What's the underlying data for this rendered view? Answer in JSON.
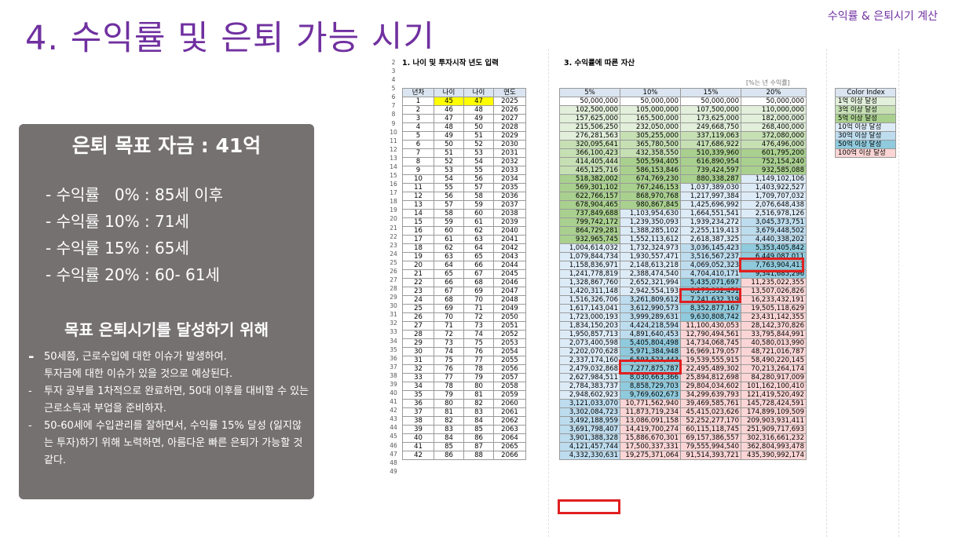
{
  "header": {
    "top_right": "수익률 & 은퇴시기 계산",
    "title": "4. 수익률 및 은퇴 가능 시기"
  },
  "panel": {
    "title": "은퇴 목표 자금 : 41억",
    "rates": [
      "- 수익률   0% : 85세 이후",
      "- 수익률 10% : 71세",
      "- 수익률 15% : 65세",
      "- 수익률 20% : 60- 61세"
    ],
    "subtitle": "목표 은퇴시기를 달성하기 위해",
    "notes": [
      "50세쯤, 근로수입에 대한 이슈가 발생하여.\n투자금에 대한 이슈가 있을 것으로 예상된다.",
      "투자 공부를 1차적으로 완료하면, 50대 이후를 대비할 수 있는 근로소득과 부업을 준비하자.",
      "50-60세에 수입관리를 잘하면서, 수익률 15% 달성 (잃지않는 투자)하기 위해 노력하면, 아름다운 빠른 은퇴가 가능할 것 같다."
    ]
  },
  "sheet": {
    "section1_title": "1. 나이 및 투자시작 년도 입력",
    "section3_title": "3. 수익률에 따른 자산",
    "unit_note": "[%는 년 수익률]",
    "row_numbers": [
      "2",
      "3",
      "4",
      "5",
      "6",
      "7",
      "8",
      "9",
      "10",
      "11",
      "12",
      "13",
      "14",
      "15",
      "16",
      "17",
      "18",
      "19",
      "20",
      "21",
      "22",
      "23",
      "24",
      "25",
      "26",
      "27",
      "28",
      "29",
      "30",
      "31",
      "32",
      "33",
      "34",
      "35",
      "36",
      "37",
      "38",
      "39",
      "40",
      "41",
      "42",
      "43",
      "44",
      "45",
      "46",
      "47",
      "48",
      "49"
    ],
    "left_headers": [
      "년차",
      "나이",
      "나이",
      "연도"
    ],
    "left_rows": [
      [
        "1",
        "45",
        "47",
        "2025"
      ],
      [
        "2",
        "46",
        "48",
        "2026"
      ],
      [
        "3",
        "47",
        "49",
        "2027"
      ],
      [
        "4",
        "48",
        "50",
        "2028"
      ],
      [
        "5",
        "49",
        "51",
        "2029"
      ],
      [
        "6",
        "50",
        "52",
        "2030"
      ],
      [
        "7",
        "51",
        "53",
        "2031"
      ],
      [
        "8",
        "52",
        "54",
        "2032"
      ],
      [
        "9",
        "53",
        "55",
        "2033"
      ],
      [
        "10",
        "54",
        "56",
        "2034"
      ],
      [
        "11",
        "55",
        "57",
        "2035"
      ],
      [
        "12",
        "56",
        "58",
        "2036"
      ],
      [
        "13",
        "57",
        "59",
        "2037"
      ],
      [
        "14",
        "58",
        "60",
        "2038"
      ],
      [
        "15",
        "59",
        "61",
        "2039"
      ],
      [
        "16",
        "60",
        "62",
        "2040"
      ],
      [
        "17",
        "61",
        "63",
        "2041"
      ],
      [
        "18",
        "62",
        "64",
        "2042"
      ],
      [
        "19",
        "63",
        "65",
        "2043"
      ],
      [
        "20",
        "64",
        "66",
        "2044"
      ],
      [
        "21",
        "65",
        "67",
        "2045"
      ],
      [
        "22",
        "66",
        "68",
        "2046"
      ],
      [
        "23",
        "67",
        "69",
        "2047"
      ],
      [
        "24",
        "68",
        "70",
        "2048"
      ],
      [
        "25",
        "69",
        "71",
        "2049"
      ],
      [
        "26",
        "70",
        "72",
        "2050"
      ],
      [
        "27",
        "71",
        "73",
        "2051"
      ],
      [
        "28",
        "72",
        "74",
        "2052"
      ],
      [
        "29",
        "73",
        "75",
        "2053"
      ],
      [
        "30",
        "74",
        "76",
        "2054"
      ],
      [
        "31",
        "75",
        "77",
        "2055"
      ],
      [
        "32",
        "76",
        "78",
        "2056"
      ],
      [
        "33",
        "77",
        "79",
        "2057"
      ],
      [
        "34",
        "78",
        "80",
        "2058"
      ],
      [
        "35",
        "79",
        "81",
        "2059"
      ],
      [
        "36",
        "80",
        "82",
        "2060"
      ],
      [
        "37",
        "81",
        "83",
        "2061"
      ],
      [
        "38",
        "82",
        "84",
        "2062"
      ],
      [
        "39",
        "83",
        "85",
        "2063"
      ],
      [
        "40",
        "84",
        "86",
        "2064"
      ],
      [
        "41",
        "85",
        "87",
        "2065"
      ],
      [
        "42",
        "86",
        "88",
        "2066"
      ]
    ],
    "right_headers": [
      "5%",
      "10%",
      "15%",
      "20%"
    ],
    "right_rows": [
      [
        "50,000,000",
        "50,000,000",
        "50,000,000",
        "50,000,000"
      ],
      [
        "102,500,000",
        "105,000,000",
        "107,500,000",
        "110,000,000"
      ],
      [
        "157,625,000",
        "165,500,000",
        "173,625,000",
        "182,000,000"
      ],
      [
        "215,506,250",
        "232,050,000",
        "249,668,750",
        "268,400,000"
      ],
      [
        "276,281,563",
        "305,255,000",
        "337,119,063",
        "372,080,000"
      ],
      [
        "320,095,641",
        "365,780,500",
        "417,686,922",
        "476,496,000"
      ],
      [
        "366,100,423",
        "432,358,550",
        "510,339,960",
        "601,795,200"
      ],
      [
        "414,405,444",
        "505,594,405",
        "616,890,954",
        "752,154,240"
      ],
      [
        "465,125,716",
        "586,153,846",
        "739,424,597",
        "932,585,088"
      ],
      [
        "518,382,002",
        "674,769,230",
        "880,338,287",
        "1,149,102,106"
      ],
      [
        "569,301,102",
        "767,246,153",
        "1,037,389,030",
        "1,403,922,527"
      ],
      [
        "622,766,157",
        "868,970,768",
        "1,217,997,384",
        "1,709,707,032"
      ],
      [
        "678,904,465",
        "980,867,845",
        "1,425,696,992",
        "2,076,648,438"
      ],
      [
        "737,849,688",
        "1,103,954,630",
        "1,664,551,541",
        "2,516,978,126"
      ],
      [
        "799,742,172",
        "1,239,350,093",
        "1,939,234,272",
        "3,045,373,751"
      ],
      [
        "864,729,281",
        "1,388,285,102",
        "2,255,119,413",
        "3,679,448,502"
      ],
      [
        "932,965,745",
        "1,552,113,612",
        "2,618,387,325",
        "4,440,338,202"
      ],
      [
        "1,004,614,032",
        "1,732,324,973",
        "3,036,145,423",
        "5,353,405,842"
      ],
      [
        "1,079,844,734",
        "1,930,557,471",
        "3,516,567,237",
        "6,449,087,011"
      ],
      [
        "1,158,836,971",
        "2,148,613,218",
        "4,069,052,323",
        "7,763,904,413"
      ],
      [
        "1,241,778,819",
        "2,388,474,540",
        "4,704,410,171",
        "9,341,685,296"
      ],
      [
        "1,328,867,760",
        "2,652,321,994",
        "5,435,071,697",
        "11,235,022,355"
      ],
      [
        "1,420,311,148",
        "2,942,554,193",
        "6,275,332,451",
        "13,507,026,826"
      ],
      [
        "1,516,326,706",
        "3,261,809,612",
        "7,241,632,319",
        "16,233,432,191"
      ],
      [
        "1,617,143,041",
        "3,612,990,573",
        "8,352,877,167",
        "19,505,118,629"
      ],
      [
        "1,723,000,193",
        "3,999,289,631",
        "9,630,808,742",
        "23,431,142,355"
      ],
      [
        "1,834,150,203",
        "4,424,218,594",
        "11,100,430,053",
        "28,142,370,826"
      ],
      [
        "1,950,857,713",
        "4,891,640,453",
        "12,790,494,561",
        "33,795,844,991"
      ],
      [
        "2,073,400,598",
        "5,405,804,498",
        "14,734,068,745",
        "40,580,013,990"
      ],
      [
        "2,202,070,628",
        "5,971,384,948",
        "16,969,179,057",
        "48,721,016,787"
      ],
      [
        "2,337,174,160",
        "6,593,523,443",
        "19,539,555,915",
        "58,490,220,145"
      ],
      [
        "2,479,032,868",
        "7,277,875,787",
        "22,495,489,302",
        "70,213,264,174"
      ],
      [
        "2,627,984,511",
        "8,030,663,366",
        "25,894,812,698",
        "84,280,917,009"
      ],
      [
        "2,784,383,737",
        "8,858,729,703",
        "29,804,034,602",
        "101,162,100,410"
      ],
      [
        "2,948,602,923",
        "9,769,602,673",
        "34,299,639,793",
        "121,419,520,492"
      ],
      [
        "3,121,033,070",
        "10,771,562,940",
        "39,469,585,761",
        "145,728,424,591"
      ],
      [
        "3,302,084,723",
        "11,873,719,234",
        "45,415,023,626",
        "174,899,109,509"
      ],
      [
        "3,492,188,959",
        "13,086,091,158",
        "52,252,277,170",
        "209,903,931,411"
      ],
      [
        "3,691,798,407",
        "14,419,700,274",
        "60,115,118,745",
        "251,909,717,693"
      ],
      [
        "3,901,388,328",
        "15,886,670,301",
        "69,157,386,557",
        "302,316,661,232"
      ],
      [
        "4,121,457,744",
        "17,500,337,331",
        "79,555,994,540",
        "362,804,993,478"
      ],
      [
        "4,332,330,631",
        "19,275,371,064",
        "91,514,393,721",
        "435,390,992,174"
      ]
    ],
    "legend_header": "Color Index",
    "legend": [
      "1억 이상 달성",
      "3억 이상 달성",
      "5억 이상 달성",
      "10억 이상 달성",
      "30억 이상 달성",
      "50억 이상 달성",
      "100억 이상 달성"
    ]
  },
  "colors": {
    "title": "#7030a0",
    "panel_bg": "#767171",
    "highlight_box": "#e02020",
    "age_highlight": "#ffff00",
    "tier_1": "#e2efda",
    "tier_3": "#c6e0b4",
    "tier_5": "#a9d08e",
    "tier_10": "#ddebf7",
    "tier_30": "#bddcee",
    "tier_50": "#8fcadd",
    "tier_100": "#fbd5d5"
  }
}
